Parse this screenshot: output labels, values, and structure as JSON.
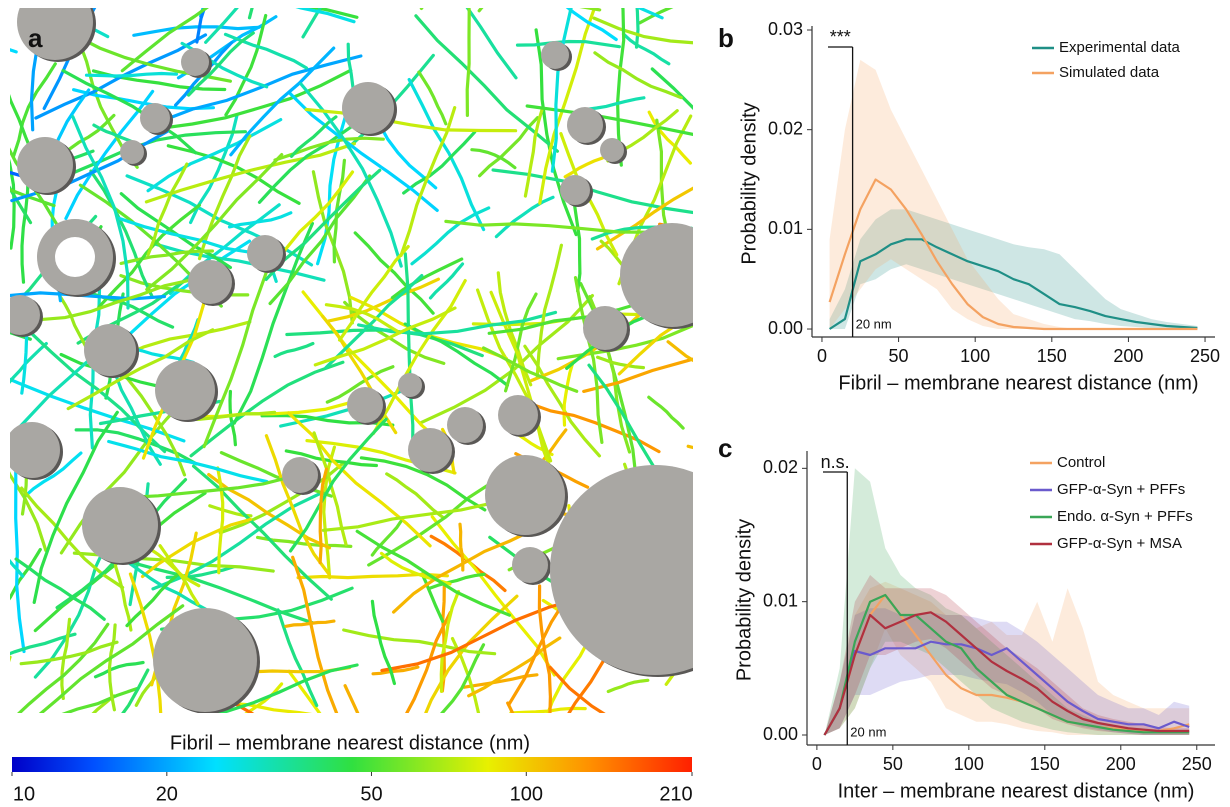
{
  "panel_a": {
    "label": "a",
    "colorbar": {
      "title": "Fibril – membrane nearest distance (nm)",
      "ticks": [
        10,
        20,
        50,
        100,
        210
      ],
      "lim": [
        10,
        210
      ],
      "log": true
    }
  },
  "chart_data": [
    {
      "type": "line",
      "label": "b",
      "xlabel": "Fibril – membrane nearest distance (nm)",
      "ylabel": "Probability density",
      "xlim": [
        -6.5,
        256.5
      ],
      "xticks": [
        0,
        50,
        100,
        150,
        200,
        250
      ],
      "ylim": [
        -0.0008,
        0.03
      ],
      "yticks": [
        {
          "value": 0,
          "label": "0.00"
        },
        0.01,
        0.02,
        0.03
      ],
      "significance": {
        "label": "***"
      },
      "marker": {
        "x": 20,
        "label": "20 nm"
      },
      "x": [
        5,
        15,
        25,
        35,
        45,
        55,
        65,
        75,
        85,
        95,
        105,
        115,
        125,
        135,
        145,
        155,
        165,
        175,
        185,
        195,
        205,
        215,
        225,
        235,
        245
      ],
      "series": [
        {
          "name": "Experimental data",
          "color": "#1f8f86",
          "values": [
            0,
            0.001,
            0.0068,
            0.0075,
            0.0085,
            0.009,
            0.009,
            0.0082,
            0.0075,
            0.0068,
            0.0063,
            0.0058,
            0.005,
            0.0045,
            0.0035,
            0.0025,
            0.0022,
            0.0018,
            0.0013,
            0.001,
            0.0007,
            0.0005,
            0.0003,
            0.0002,
            0.0001
          ],
          "upper": [
            0.001,
            0.004,
            0.009,
            0.011,
            0.012,
            0.012,
            0.0115,
            0.011,
            0.0105,
            0.01,
            0.0095,
            0.009,
            0.0085,
            0.0082,
            0.008,
            0.0075,
            0.006,
            0.0045,
            0.003,
            0.002,
            0.0015,
            0.001,
            0.0007,
            0.0005,
            0.0003
          ],
          "lower": [
            0,
            0,
            0.0045,
            0.005,
            0.006,
            0.0065,
            0.006,
            0.0055,
            0.005,
            0.0045,
            0.004,
            0.0035,
            0.003,
            0.0025,
            0.002,
            0.0015,
            0.001,
            0.0008,
            0.0005,
            0.0003,
            0.0002,
            0.0001,
            0,
            0,
            0
          ]
        },
        {
          "name": "Simulated data",
          "color": "#f4a261",
          "values": [
            0.0027,
            0.0075,
            0.012,
            0.015,
            0.014,
            0.012,
            0.0095,
            0.0068,
            0.0045,
            0.0025,
            0.0012,
            0.0005,
            0.0002,
            0.0001,
            0,
            0,
            0,
            0,
            0,
            0,
            0,
            0,
            0,
            0,
            0
          ],
          "upper": [
            0.009,
            0.02,
            0.027,
            0.026,
            0.022,
            0.019,
            0.016,
            0.013,
            0.01,
            0.007,
            0.005,
            0.003,
            0.0015,
            0.001,
            0.0005,
            0.0002,
            0,
            0,
            0,
            0,
            0,
            0,
            0,
            0,
            0
          ],
          "lower": [
            0,
            0.002,
            0.004,
            0.006,
            0.007,
            0.006,
            0.005,
            0.004,
            0.002,
            0.001,
            0.0003,
            0,
            0,
            0,
            0,
            0,
            0,
            0,
            0,
            0,
            0,
            0,
            0,
            0,
            0
          ]
        }
      ]
    },
    {
      "type": "line",
      "label": "c",
      "xlabel": "Inter – membrane nearest distance (nm)",
      "ylabel": "Probability density",
      "xlim": [
        -6.5,
        262
      ],
      "xticks": [
        0,
        50,
        100,
        150,
        200,
        250
      ],
      "ylim": [
        -0.00075,
        0.021
      ],
      "yticks": [
        {
          "value": 0,
          "label": "0.00"
        },
        0.01,
        0.02
      ],
      "significance": {
        "label": "n.s."
      },
      "marker": {
        "x": 20,
        "label": "20 nm"
      },
      "x": [
        5,
        15,
        25,
        35,
        45,
        55,
        65,
        75,
        85,
        95,
        105,
        115,
        125,
        135,
        145,
        155,
        165,
        175,
        185,
        195,
        205,
        215,
        225,
        235,
        245
      ],
      "series": [
        {
          "name": "Control",
          "color": "#f4a261",
          "values": [
            0,
            0.002,
            0.006,
            0.009,
            0.0105,
            0.009,
            0.0075,
            0.006,
            0.0045,
            0.0035,
            0.003,
            0.003,
            0.0028,
            0.0025,
            0.002,
            0.0015,
            0.001,
            0.0008,
            0.0006,
            0.0005,
            0.0004,
            0.0003,
            0.0003,
            0.0005,
            0.0008
          ],
          "upper": [
            0,
            0.004,
            0.009,
            0.011,
            0.0115,
            0.011,
            0.0105,
            0.01,
            0.009,
            0.009,
            0.008,
            0.0085,
            0.0075,
            0.0075,
            0.01,
            0.007,
            0.011,
            0.008,
            0.004,
            0.003,
            0.0025,
            0.002,
            0.002,
            0.002,
            0.002
          ],
          "lower": [
            0,
            0.0005,
            0.002,
            0.005,
            0.008,
            0.006,
            0.005,
            0.004,
            0.002,
            0.0015,
            0.001,
            0.001,
            0.0008,
            0.0005,
            0.0003,
            0.0002,
            0,
            0,
            0,
            0,
            0,
            0,
            0,
            0,
            0
          ]
        },
        {
          "name": "GFP-α-Syn + PFFs",
          "color": "#6a5acd",
          "values": [
            0,
            0.002,
            0.0063,
            0.006,
            0.0065,
            0.0065,
            0.0065,
            0.007,
            0.0068,
            0.0068,
            0.0065,
            0.006,
            0.0065,
            0.0055,
            0.0045,
            0.0035,
            0.0025,
            0.0018,
            0.0012,
            0.001,
            0.0008,
            0.0008,
            0.0005,
            0.001,
            0.0006
          ],
          "upper": [
            0,
            0.004,
            0.009,
            0.0095,
            0.0095,
            0.009,
            0.009,
            0.0092,
            0.009,
            0.009,
            0.0088,
            0.0085,
            0.0085,
            0.0078,
            0.007,
            0.006,
            0.005,
            0.004,
            0.003,
            0.0025,
            0.002,
            0.002,
            0.0015,
            0.0025,
            0.0022
          ],
          "lower": [
            0,
            0.0005,
            0.003,
            0.003,
            0.0035,
            0.004,
            0.0042,
            0.0045,
            0.0045,
            0.0045,
            0.0042,
            0.004,
            0.0038,
            0.0032,
            0.0025,
            0.0015,
            0.001,
            0.0006,
            0.0004,
            0.0002,
            0.0001,
            0,
            0,
            0,
            0
          ]
        },
        {
          "name": "Endo. α-Syn + PFFs",
          "color": "#3aa657",
          "values": [
            0,
            0.002,
            0.007,
            0.01,
            0.0105,
            0.009,
            0.009,
            0.008,
            0.007,
            0.0065,
            0.005,
            0.004,
            0.003,
            0.0025,
            0.002,
            0.0015,
            0.001,
            0.0008,
            0.0006,
            0.0004,
            0.0003,
            0.0002,
            0.0002,
            0.0002,
            0.0002
          ],
          "upper": [
            0,
            0.005,
            0.02,
            0.019,
            0.014,
            0.012,
            0.011,
            0.0105,
            0.0095,
            0.009,
            0.008,
            0.007,
            0.006,
            0.005,
            0.004,
            0.003,
            0.002,
            0.0015,
            0.001,
            0.0008,
            0.0006,
            0.0005,
            0.0004,
            0.0004,
            0.0004
          ],
          "lower": [
            0,
            0.0005,
            0.002,
            0.005,
            0.007,
            0.007,
            0.0065,
            0.006,
            0.005,
            0.004,
            0.003,
            0.002,
            0.0015,
            0.001,
            0.0007,
            0.0004,
            0.0002,
            0.0001,
            0,
            0,
            0,
            0,
            0,
            0,
            0
          ]
        },
        {
          "name": "GFP-α-Syn + MSA",
          "color": "#b0303f",
          "values": [
            0,
            0.002,
            0.006,
            0.009,
            0.008,
            0.0085,
            0.009,
            0.0092,
            0.0085,
            0.0075,
            0.0065,
            0.0055,
            0.0048,
            0.0042,
            0.0035,
            0.0025,
            0.0018,
            0.0012,
            0.0009,
            0.0007,
            0.0005,
            0.0004,
            0.0003,
            0.0003,
            0.0003
          ],
          "upper": [
            0,
            0.004,
            0.01,
            0.012,
            0.011,
            0.011,
            0.011,
            0.011,
            0.0105,
            0.0095,
            0.0085,
            0.0075,
            0.0065,
            0.0058,
            0.005,
            0.004,
            0.003,
            0.002,
            0.0015,
            0.0012,
            0.001,
            0.0008,
            0.0006,
            0.0005,
            0.0005
          ],
          "lower": [
            0,
            0.0005,
            0.003,
            0.006,
            0.006,
            0.0065,
            0.007,
            0.0072,
            0.0065,
            0.0055,
            0.0045,
            0.0035,
            0.003,
            0.0025,
            0.002,
            0.0012,
            0.0008,
            0.0005,
            0.0003,
            0.0002,
            0.0001,
            0,
            0,
            0,
            0
          ]
        }
      ]
    }
  ]
}
